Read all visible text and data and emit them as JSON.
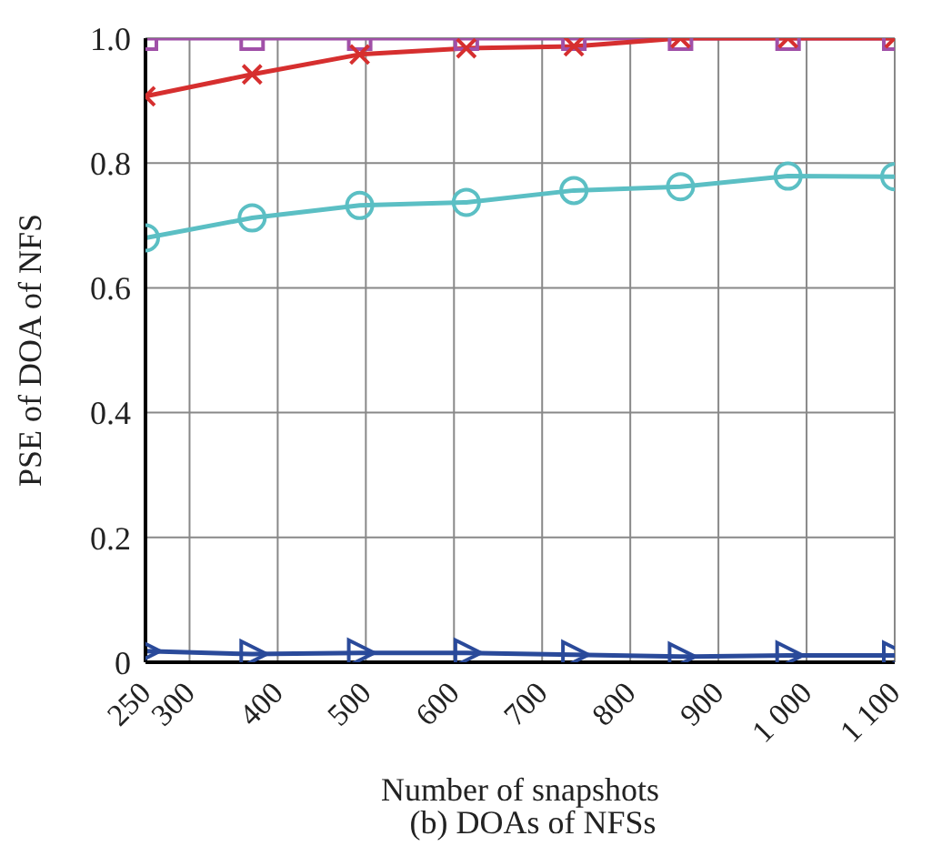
{
  "chart_data": {
    "type": "line",
    "xlabel": "Number of snapshots",
    "ylabel": "PSE of DOA of NFS",
    "x": [
      250,
      371,
      493,
      614,
      736,
      857,
      979,
      1100
    ],
    "series": [
      {
        "color": "#a050a8",
        "marker": "square",
        "values": [
          1.0,
          1.0,
          1.0,
          1.0,
          1.0,
          1.0,
          1.0,
          1.0
        ]
      },
      {
        "color": "#d62f2f",
        "marker": "cross",
        "values": [
          0.907,
          0.942,
          0.974,
          0.984,
          0.987,
          1.0,
          1.0,
          1.0
        ]
      },
      {
        "color": "#5bbfc4",
        "marker": "circle",
        "values": [
          0.68,
          0.712,
          0.732,
          0.737,
          0.756,
          0.762,
          0.779,
          0.778
        ]
      },
      {
        "color": "#2a4a9a",
        "marker": "triangle",
        "values": [
          0.018,
          0.013,
          0.015,
          0.015,
          0.012,
          0.009,
          0.011,
          0.011
        ]
      }
    ],
    "xlim": [
      250,
      1100
    ],
    "xticks": [
      250,
      300,
      400,
      500,
      600,
      700,
      800,
      900,
      {
        "value": 1000,
        "label": "1 000"
      },
      {
        "value": 1100,
        "label": "1 100"
      }
    ],
    "ylim": [
      0,
      1
    ],
    "yticks": [
      0,
      0.2,
      0.4,
      0.6,
      0.8,
      {
        "value": 1,
        "label": "1.0"
      }
    ],
    "grid": true,
    "legend": false,
    "annotations": [
      "(b) DOAs of NFSs"
    ]
  }
}
